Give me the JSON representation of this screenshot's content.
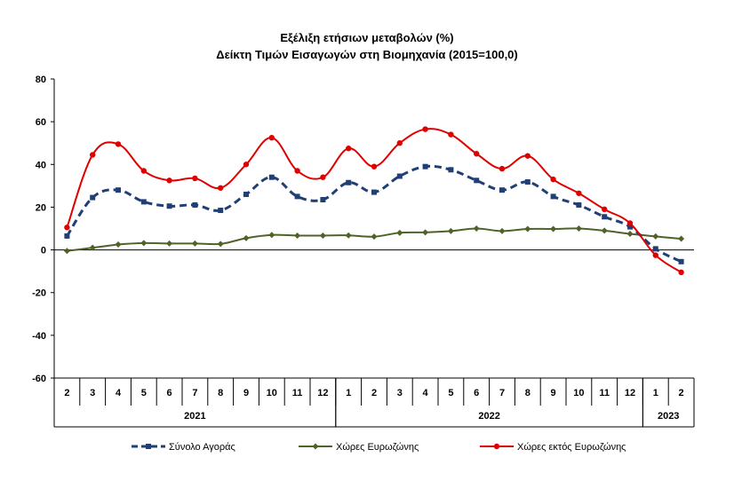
{
  "chart_data": {
    "type": "line",
    "title": "Εξέλιξη ετήσιων μεταβολών (%)",
    "subtitle": "Δείκτη Τιμών Εισαγωγών στη Βιομηχανία (2015=100,0)",
    "ylim": [
      -60,
      80
    ],
    "yticks": [
      -60,
      -40,
      -20,
      0,
      20,
      40,
      60,
      80
    ],
    "grid": false,
    "legend_position": "bottom",
    "categories": [
      "2",
      "3",
      "4",
      "5",
      "6",
      "7",
      "8",
      "9",
      "10",
      "11",
      "12",
      "1",
      "2",
      "3",
      "4",
      "5",
      "6",
      "7",
      "8",
      "9",
      "10",
      "11",
      "12",
      "1",
      "2"
    ],
    "years": [
      {
        "label": "2021",
        "start": 0,
        "end": 10
      },
      {
        "label": "2022",
        "start": 11,
        "end": 22
      },
      {
        "label": "2023",
        "start": 23,
        "end": 24
      }
    ],
    "series": [
      {
        "name": "Σύνολο Αγοράς",
        "color": "#1F3F75",
        "style": "dashed",
        "marker": "square",
        "values": [
          6.5,
          24.5,
          28.0,
          22.5,
          20.5,
          21.0,
          18.5,
          26.0,
          34.0,
          25.0,
          23.5,
          31.5,
          27.0,
          34.5,
          39.0,
          37.5,
          32.5,
          28.0,
          31.8,
          25.0,
          21.0,
          15.5,
          10.8,
          0.5,
          -5.5
        ]
      },
      {
        "name": "Χώρες Ευρωζώνης",
        "color": "#4F6228",
        "style": "solid",
        "marker": "diamond",
        "values": [
          -0.5,
          1.0,
          2.5,
          3.2,
          3.0,
          3.0,
          2.8,
          5.5,
          7.0,
          6.7,
          6.7,
          6.8,
          6.2,
          8.0,
          8.2,
          8.8,
          10.0,
          8.8,
          9.8,
          9.8,
          10.0,
          9.0,
          7.5,
          6.3,
          5.2
        ]
      },
      {
        "name": "Χώρες εκτός Ευρωζώνης",
        "color": "#E00000",
        "style": "solid",
        "marker": "circle",
        "values": [
          10.5,
          44.5,
          49.5,
          37.0,
          32.5,
          33.5,
          29.0,
          40.0,
          52.5,
          37.0,
          34.0,
          47.5,
          39.0,
          50.0,
          56.5,
          54.0,
          45.0,
          38.0,
          44.0,
          33.0,
          26.5,
          19.0,
          12.5,
          -2.5,
          -10.5
        ]
      }
    ]
  }
}
